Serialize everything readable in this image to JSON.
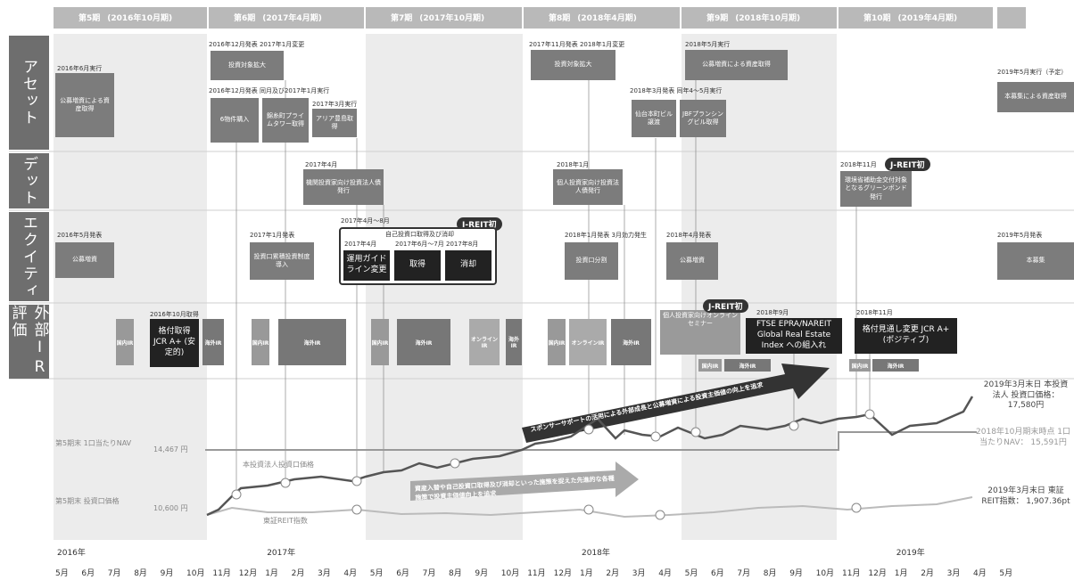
{
  "periods": [
    {
      "name": "第5期",
      "term": "(2016年10月期)"
    },
    {
      "name": "第6期",
      "term": "(2017年4月期)"
    },
    {
      "name": "第7期",
      "term": "(2017年10月期)"
    },
    {
      "name": "第8期",
      "term": "(2018年4月期)"
    },
    {
      "name": "第9期",
      "term": "(2018年10月期)"
    },
    {
      "name": "第10期",
      "term": "(2019年4月期)"
    }
  ],
  "rows": [
    "アセット",
    "デット",
    "エクイティ",
    "外部IR評価"
  ],
  "events": [
    {
      "date": "2016年6月実行",
      "text": "公募増資による資産取得"
    },
    {
      "date": "2016年12月発表 2017年1月変更",
      "text": "投資対象拡大"
    },
    {
      "date": "2016年12月発表 同月及び2017年1月実行",
      "text": "6物件購入"
    },
    {
      "text": "錦糸町プライムタワー取得"
    },
    {
      "date": "2017年3月実行",
      "text": "アリア豊島取得"
    },
    {
      "date": "2017年11月発表 2018年1月変更",
      "text": "投資対象拡大"
    },
    {
      "date": "2018年3月発表 同年4〜5月実行",
      "text": "仙台本町ビル譲渡"
    },
    {
      "text": "JBFプランシングビル取得"
    },
    {
      "date": "2018年5月実行",
      "text": "公募増資による資産取得"
    },
    {
      "date": "2019年5月実行（予定）",
      "text": "本募集による資産取得"
    },
    {
      "date": "2017年4月",
      "text": "機関投資家向け投資法人債発行"
    },
    {
      "date": "2018年1月",
      "text": "個人投資家向け投資法人債発行"
    },
    {
      "date": "2018年11月",
      "text": "環境省補助金交付対象となるグリーンボンド発行"
    },
    {
      "date": "2016年5月発表",
      "text": "公募増資"
    },
    {
      "date": "2017年1月発表",
      "text": "投資口累積投資制度導入"
    },
    {
      "date": "2018年1月発表 3月効力発生",
      "text": "投資口分割"
    },
    {
      "date": "2018年4月発表",
      "text": "公募増資"
    },
    {
      "date": "2019年5月発表",
      "text": "本募集"
    },
    {
      "date": "2016年10月取得",
      "text": "格付取得 JCR A+ (安定的)"
    },
    {
      "date": "2018年9月",
      "text": "FTSE EPRA/NAREIT Global Real Estate Index への組入れ"
    },
    {
      "date": "2018年11月",
      "text": "格付見通し変更 JCR A+ (ポジティブ)"
    },
    {
      "text": "個人投資家向けオンラインセミナー"
    }
  ],
  "badge": "J-REIT初",
  "buyback": {
    "date": "2017年4月〜8月",
    "title": "自己投資口取得及び消却",
    "steps": [
      {
        "date": "2017年4月",
        "text": "運用ガイドライン変更"
      },
      {
        "date": "2017年6月〜7月",
        "text": "取得"
      },
      {
        "date": "2017年8月",
        "text": "消却"
      }
    ]
  },
  "ir": {
    "domestic": "国内IR",
    "overseas": "海外IR",
    "online": "オンラインIR"
  },
  "chart_labels": {
    "nav_start": "第5期末 1口当たりNAV",
    "nav_start_value": "14,467 円",
    "price_start": "第5期末 投資口価格",
    "price_start_value": "10,600 円",
    "price_name": "本投資法人投資口価格",
    "reit_name": "東証REIT指数",
    "price_end": "2019年3月末日 本投資法人 投資口価格： 17,580円",
    "nav_end": "2018年10月期末時点 1口当たりNAV： 15,591円",
    "reit_end": "2019年3月末日 東証REIT指数： 1,907.36pt"
  },
  "arrows": [
    "資産入替や自己投資口取得及び消却といった施策を捉えた先進的な各種施策で投資主価値向上を追求",
    "スポンサーサポートの活用による外部成長と公募増資による投資主価値の向上を追求"
  ],
  "axis": {
    "years": [
      "2016年",
      "2017年",
      "2018年",
      "2019年"
    ],
    "months": [
      "5月",
      "6月",
      "7月",
      "8月",
      "9月",
      "10月",
      "11月",
      "12月",
      "1月",
      "2月",
      "3月",
      "4月",
      "5月",
      "6月",
      "7月",
      "8月",
      "9月",
      "10月",
      "11月",
      "12月",
      "1月",
      "2月",
      "3月",
      "4月",
      "5月",
      "6月",
      "7月",
      "8月",
      "9月",
      "10月",
      "11月",
      "12月",
      "1月",
      "2月",
      "3月",
      "4月",
      "5月"
    ]
  }
}
